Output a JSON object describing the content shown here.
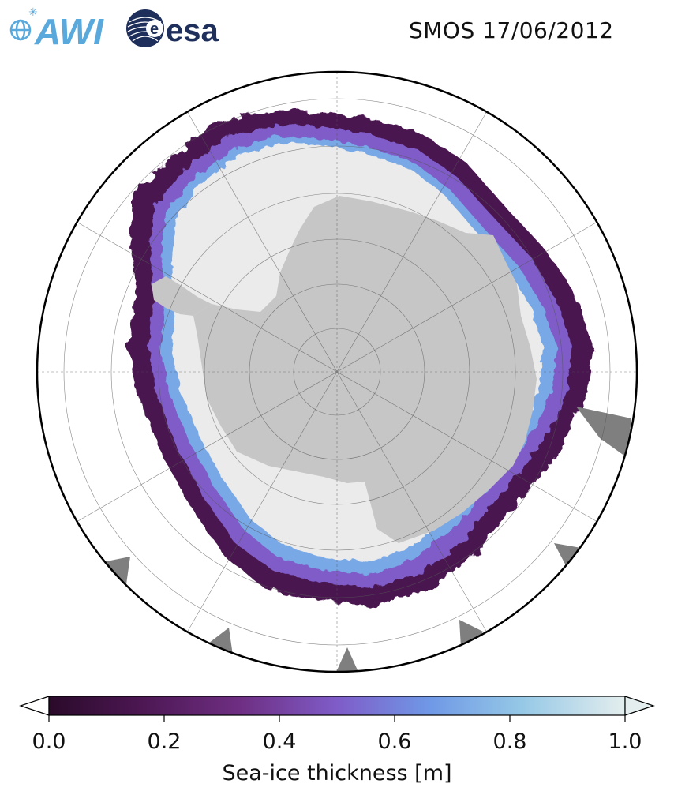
{
  "header": {
    "title": "SMOS 17/06/2012",
    "logos": [
      {
        "name": "AWI",
        "text": "AWI",
        "color": "#5aa9dc"
      },
      {
        "name": "esa",
        "text": "esa",
        "color": "#1f2f5c"
      }
    ]
  },
  "map": {
    "projection": "south-polar-stereographic",
    "colors": {
      "ocean": "#ffffff",
      "antarctica": "#c6c6c6",
      "other_land": "#7f7f7f",
      "thick_ice": "#ebebeb",
      "edge_dark": "#4a1650",
      "edge_mid": "#7a3f8e",
      "edge_blue": "#7aa6e8",
      "gridline": "#555555"
    }
  },
  "colorbar": {
    "label": "Sea-ice thickness [m]",
    "min": 0.0,
    "max": 1.0,
    "ticks": [
      "0.0",
      "0.2",
      "0.4",
      "0.6",
      "0.8",
      "1.0"
    ],
    "extend": "both",
    "colormap": [
      "#2a0a2a",
      "#4a1650",
      "#6e2e82",
      "#7f5cc8",
      "#6f98e6",
      "#95c8e6",
      "#e4eeee"
    ]
  }
}
